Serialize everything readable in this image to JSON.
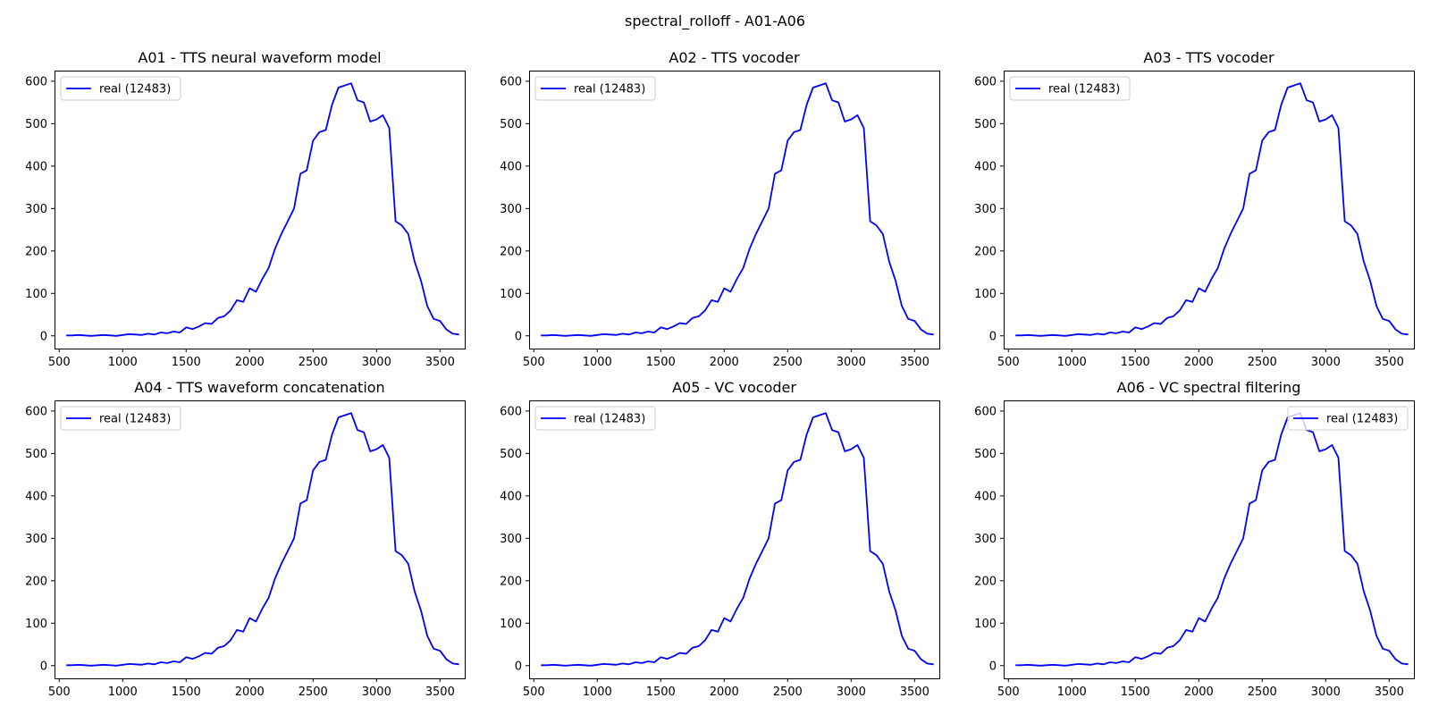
{
  "figure": {
    "suptitle": "spectral_rolloff - A01-A06",
    "line_color": "#0000ff"
  },
  "chart_data": [
    {
      "type": "line",
      "title": "A01 - TTS neural waveform model",
      "xlabel": "",
      "ylabel": "",
      "xlim": [
        463,
        3695
      ],
      "ylim": [
        -30,
        625
      ],
      "xticks": [
        500,
        1000,
        1500,
        2000,
        2500,
        3000,
        3500
      ],
      "yticks": [
        0,
        100,
        200,
        300,
        400,
        500,
        600
      ],
      "legend_position": "upper left",
      "grid": false,
      "series": [
        {
          "name": "real (12483)",
          "x": [
            556,
            604,
            652,
            700,
            750,
            800,
            850,
            900,
            950,
            1000,
            1050,
            1100,
            1150,
            1200,
            1250,
            1300,
            1350,
            1400,
            1450,
            1500,
            1550,
            1600,
            1650,
            1700,
            1750,
            1800,
            1850,
            1900,
            1950,
            2000,
            2050,
            2100,
            2150,
            2200,
            2250,
            2300,
            2350,
            2400,
            2450,
            2500,
            2550,
            2600,
            2650,
            2700,
            2750,
            2800,
            2850,
            2900,
            2950,
            3000,
            3050,
            3100,
            3150,
            3200,
            3250,
            3300,
            3350,
            3400,
            3450,
            3500,
            3550,
            3600,
            3650
          ],
          "y": [
            1,
            1,
            2,
            1,
            0,
            1,
            2,
            1,
            0,
            2,
            4,
            3,
            2,
            5,
            3,
            8,
            6,
            10,
            8,
            20,
            16,
            22,
            30,
            28,
            42,
            46,
            60,
            84,
            80,
            112,
            104,
            134,
            160,
            205,
            240,
            270,
            300,
            382,
            390,
            460,
            480,
            485,
            545,
            585,
            590,
            595,
            555,
            550,
            505,
            510,
            520,
            490,
            270,
            260,
            240,
            175,
            130,
            70,
            40,
            35,
            15,
            5,
            3
          ]
        }
      ]
    },
    {
      "type": "line",
      "title": "A02 - TTS vocoder",
      "xlabel": "",
      "ylabel": "",
      "xlim": [
        463,
        3695
      ],
      "ylim": [
        -30,
        625
      ],
      "xticks": [
        500,
        1000,
        1500,
        2000,
        2500,
        3000,
        3500
      ],
      "yticks": [
        0,
        100,
        200,
        300,
        400,
        500,
        600
      ],
      "legend_position": "upper left",
      "grid": false,
      "series": [
        {
          "name": "real (12483)",
          "x": [
            556,
            604,
            652,
            700,
            750,
            800,
            850,
            900,
            950,
            1000,
            1050,
            1100,
            1150,
            1200,
            1250,
            1300,
            1350,
            1400,
            1450,
            1500,
            1550,
            1600,
            1650,
            1700,
            1750,
            1800,
            1850,
            1900,
            1950,
            2000,
            2050,
            2100,
            2150,
            2200,
            2250,
            2300,
            2350,
            2400,
            2450,
            2500,
            2550,
            2600,
            2650,
            2700,
            2750,
            2800,
            2850,
            2900,
            2950,
            3000,
            3050,
            3100,
            3150,
            3200,
            3250,
            3300,
            3350,
            3400,
            3450,
            3500,
            3550,
            3600,
            3650
          ],
          "y": [
            1,
            1,
            2,
            1,
            0,
            1,
            2,
            1,
            0,
            2,
            4,
            3,
            2,
            5,
            3,
            8,
            6,
            10,
            8,
            20,
            16,
            22,
            30,
            28,
            42,
            46,
            60,
            84,
            80,
            112,
            104,
            134,
            160,
            205,
            240,
            270,
            300,
            382,
            390,
            460,
            480,
            485,
            545,
            585,
            590,
            595,
            555,
            550,
            505,
            510,
            520,
            490,
            270,
            260,
            240,
            175,
            130,
            70,
            40,
            35,
            15,
            5,
            3
          ]
        }
      ]
    },
    {
      "type": "line",
      "title": "A03 - TTS vocoder",
      "xlabel": "",
      "ylabel": "",
      "xlim": [
        463,
        3695
      ],
      "ylim": [
        -30,
        625
      ],
      "xticks": [
        500,
        1000,
        1500,
        2000,
        2500,
        3000,
        3500
      ],
      "yticks": [
        0,
        100,
        200,
        300,
        400,
        500,
        600
      ],
      "legend_position": "upper left",
      "grid": false,
      "series": [
        {
          "name": "real (12483)",
          "x": [
            556,
            604,
            652,
            700,
            750,
            800,
            850,
            900,
            950,
            1000,
            1050,
            1100,
            1150,
            1200,
            1250,
            1300,
            1350,
            1400,
            1450,
            1500,
            1550,
            1600,
            1650,
            1700,
            1750,
            1800,
            1850,
            1900,
            1950,
            2000,
            2050,
            2100,
            2150,
            2200,
            2250,
            2300,
            2350,
            2400,
            2450,
            2500,
            2550,
            2600,
            2650,
            2700,
            2750,
            2800,
            2850,
            2900,
            2950,
            3000,
            3050,
            3100,
            3150,
            3200,
            3250,
            3300,
            3350,
            3400,
            3450,
            3500,
            3550,
            3600,
            3650
          ],
          "y": [
            1,
            1,
            2,
            1,
            0,
            1,
            2,
            1,
            0,
            2,
            4,
            3,
            2,
            5,
            3,
            8,
            6,
            10,
            8,
            20,
            16,
            22,
            30,
            28,
            42,
            46,
            60,
            84,
            80,
            112,
            104,
            134,
            160,
            205,
            240,
            270,
            300,
            382,
            390,
            460,
            480,
            485,
            545,
            585,
            590,
            595,
            555,
            550,
            505,
            510,
            520,
            490,
            270,
            260,
            240,
            175,
            130,
            70,
            40,
            35,
            15,
            5,
            3
          ]
        }
      ]
    },
    {
      "type": "line",
      "title": "A04 - TTS waveform concatenation",
      "xlabel": "",
      "ylabel": "",
      "xlim": [
        463,
        3695
      ],
      "ylim": [
        -30,
        625
      ],
      "xticks": [
        500,
        1000,
        1500,
        2000,
        2500,
        3000,
        3500
      ],
      "yticks": [
        0,
        100,
        200,
        300,
        400,
        500,
        600
      ],
      "legend_position": "upper left",
      "grid": false,
      "series": [
        {
          "name": "real (12483)",
          "x": [
            556,
            604,
            652,
            700,
            750,
            800,
            850,
            900,
            950,
            1000,
            1050,
            1100,
            1150,
            1200,
            1250,
            1300,
            1350,
            1400,
            1450,
            1500,
            1550,
            1600,
            1650,
            1700,
            1750,
            1800,
            1850,
            1900,
            1950,
            2000,
            2050,
            2100,
            2150,
            2200,
            2250,
            2300,
            2350,
            2400,
            2450,
            2500,
            2550,
            2600,
            2650,
            2700,
            2750,
            2800,
            2850,
            2900,
            2950,
            3000,
            3050,
            3100,
            3150,
            3200,
            3250,
            3300,
            3350,
            3400,
            3450,
            3500,
            3550,
            3600,
            3650
          ],
          "y": [
            1,
            1,
            2,
            1,
            0,
            1,
            2,
            1,
            0,
            2,
            4,
            3,
            2,
            5,
            3,
            8,
            6,
            10,
            8,
            20,
            16,
            22,
            30,
            28,
            42,
            46,
            60,
            84,
            80,
            112,
            104,
            134,
            160,
            205,
            240,
            270,
            300,
            382,
            390,
            460,
            480,
            485,
            545,
            585,
            590,
            595,
            555,
            550,
            505,
            510,
            520,
            490,
            270,
            260,
            240,
            175,
            130,
            70,
            40,
            35,
            15,
            5,
            3
          ]
        }
      ]
    },
    {
      "type": "line",
      "title": "A05 - VC vocoder",
      "xlabel": "",
      "ylabel": "",
      "xlim": [
        463,
        3695
      ],
      "ylim": [
        -30,
        625
      ],
      "xticks": [
        500,
        1000,
        1500,
        2000,
        2500,
        3000,
        3500
      ],
      "yticks": [
        0,
        100,
        200,
        300,
        400,
        500,
        600
      ],
      "legend_position": "upper left",
      "grid": false,
      "series": [
        {
          "name": "real (12483)",
          "x": [
            556,
            604,
            652,
            700,
            750,
            800,
            850,
            900,
            950,
            1000,
            1050,
            1100,
            1150,
            1200,
            1250,
            1300,
            1350,
            1400,
            1450,
            1500,
            1550,
            1600,
            1650,
            1700,
            1750,
            1800,
            1850,
            1900,
            1950,
            2000,
            2050,
            2100,
            2150,
            2200,
            2250,
            2300,
            2350,
            2400,
            2450,
            2500,
            2550,
            2600,
            2650,
            2700,
            2750,
            2800,
            2850,
            2900,
            2950,
            3000,
            3050,
            3100,
            3150,
            3200,
            3250,
            3300,
            3350,
            3400,
            3450,
            3500,
            3550,
            3600,
            3650
          ],
          "y": [
            1,
            1,
            2,
            1,
            0,
            1,
            2,
            1,
            0,
            2,
            4,
            3,
            2,
            5,
            3,
            8,
            6,
            10,
            8,
            20,
            16,
            22,
            30,
            28,
            42,
            46,
            60,
            84,
            80,
            112,
            104,
            134,
            160,
            205,
            240,
            270,
            300,
            382,
            390,
            460,
            480,
            485,
            545,
            585,
            590,
            595,
            555,
            550,
            505,
            510,
            520,
            490,
            270,
            260,
            240,
            175,
            130,
            70,
            40,
            35,
            15,
            5,
            3
          ]
        }
      ]
    },
    {
      "type": "line",
      "title": "A06 - VC spectral filtering",
      "xlabel": "",
      "ylabel": "",
      "xlim": [
        463,
        3695
      ],
      "ylim": [
        -30,
        625
      ],
      "xticks": [
        500,
        1000,
        1500,
        2000,
        2500,
        3000,
        3500
      ],
      "yticks": [
        0,
        100,
        200,
        300,
        400,
        500,
        600
      ],
      "legend_position": "upper right",
      "grid": false,
      "series": [
        {
          "name": "real (12483)",
          "x": [
            556,
            604,
            652,
            700,
            750,
            800,
            850,
            900,
            950,
            1000,
            1050,
            1100,
            1150,
            1200,
            1250,
            1300,
            1350,
            1400,
            1450,
            1500,
            1550,
            1600,
            1650,
            1700,
            1750,
            1800,
            1850,
            1900,
            1950,
            2000,
            2050,
            2100,
            2150,
            2200,
            2250,
            2300,
            2350,
            2400,
            2450,
            2500,
            2550,
            2600,
            2650,
            2700,
            2750,
            2800,
            2850,
            2900,
            2950,
            3000,
            3050,
            3100,
            3150,
            3200,
            3250,
            3300,
            3350,
            3400,
            3450,
            3500,
            3550,
            3600,
            3650
          ],
          "y": [
            1,
            1,
            2,
            1,
            0,
            1,
            2,
            1,
            0,
            2,
            4,
            3,
            2,
            5,
            3,
            8,
            6,
            10,
            8,
            20,
            16,
            22,
            30,
            28,
            42,
            46,
            60,
            84,
            80,
            112,
            104,
            134,
            160,
            205,
            240,
            270,
            300,
            382,
            390,
            460,
            480,
            485,
            545,
            585,
            590,
            595,
            555,
            550,
            505,
            510,
            520,
            490,
            270,
            260,
            240,
            175,
            130,
            70,
            40,
            35,
            15,
            5,
            3
          ]
        }
      ]
    }
  ]
}
